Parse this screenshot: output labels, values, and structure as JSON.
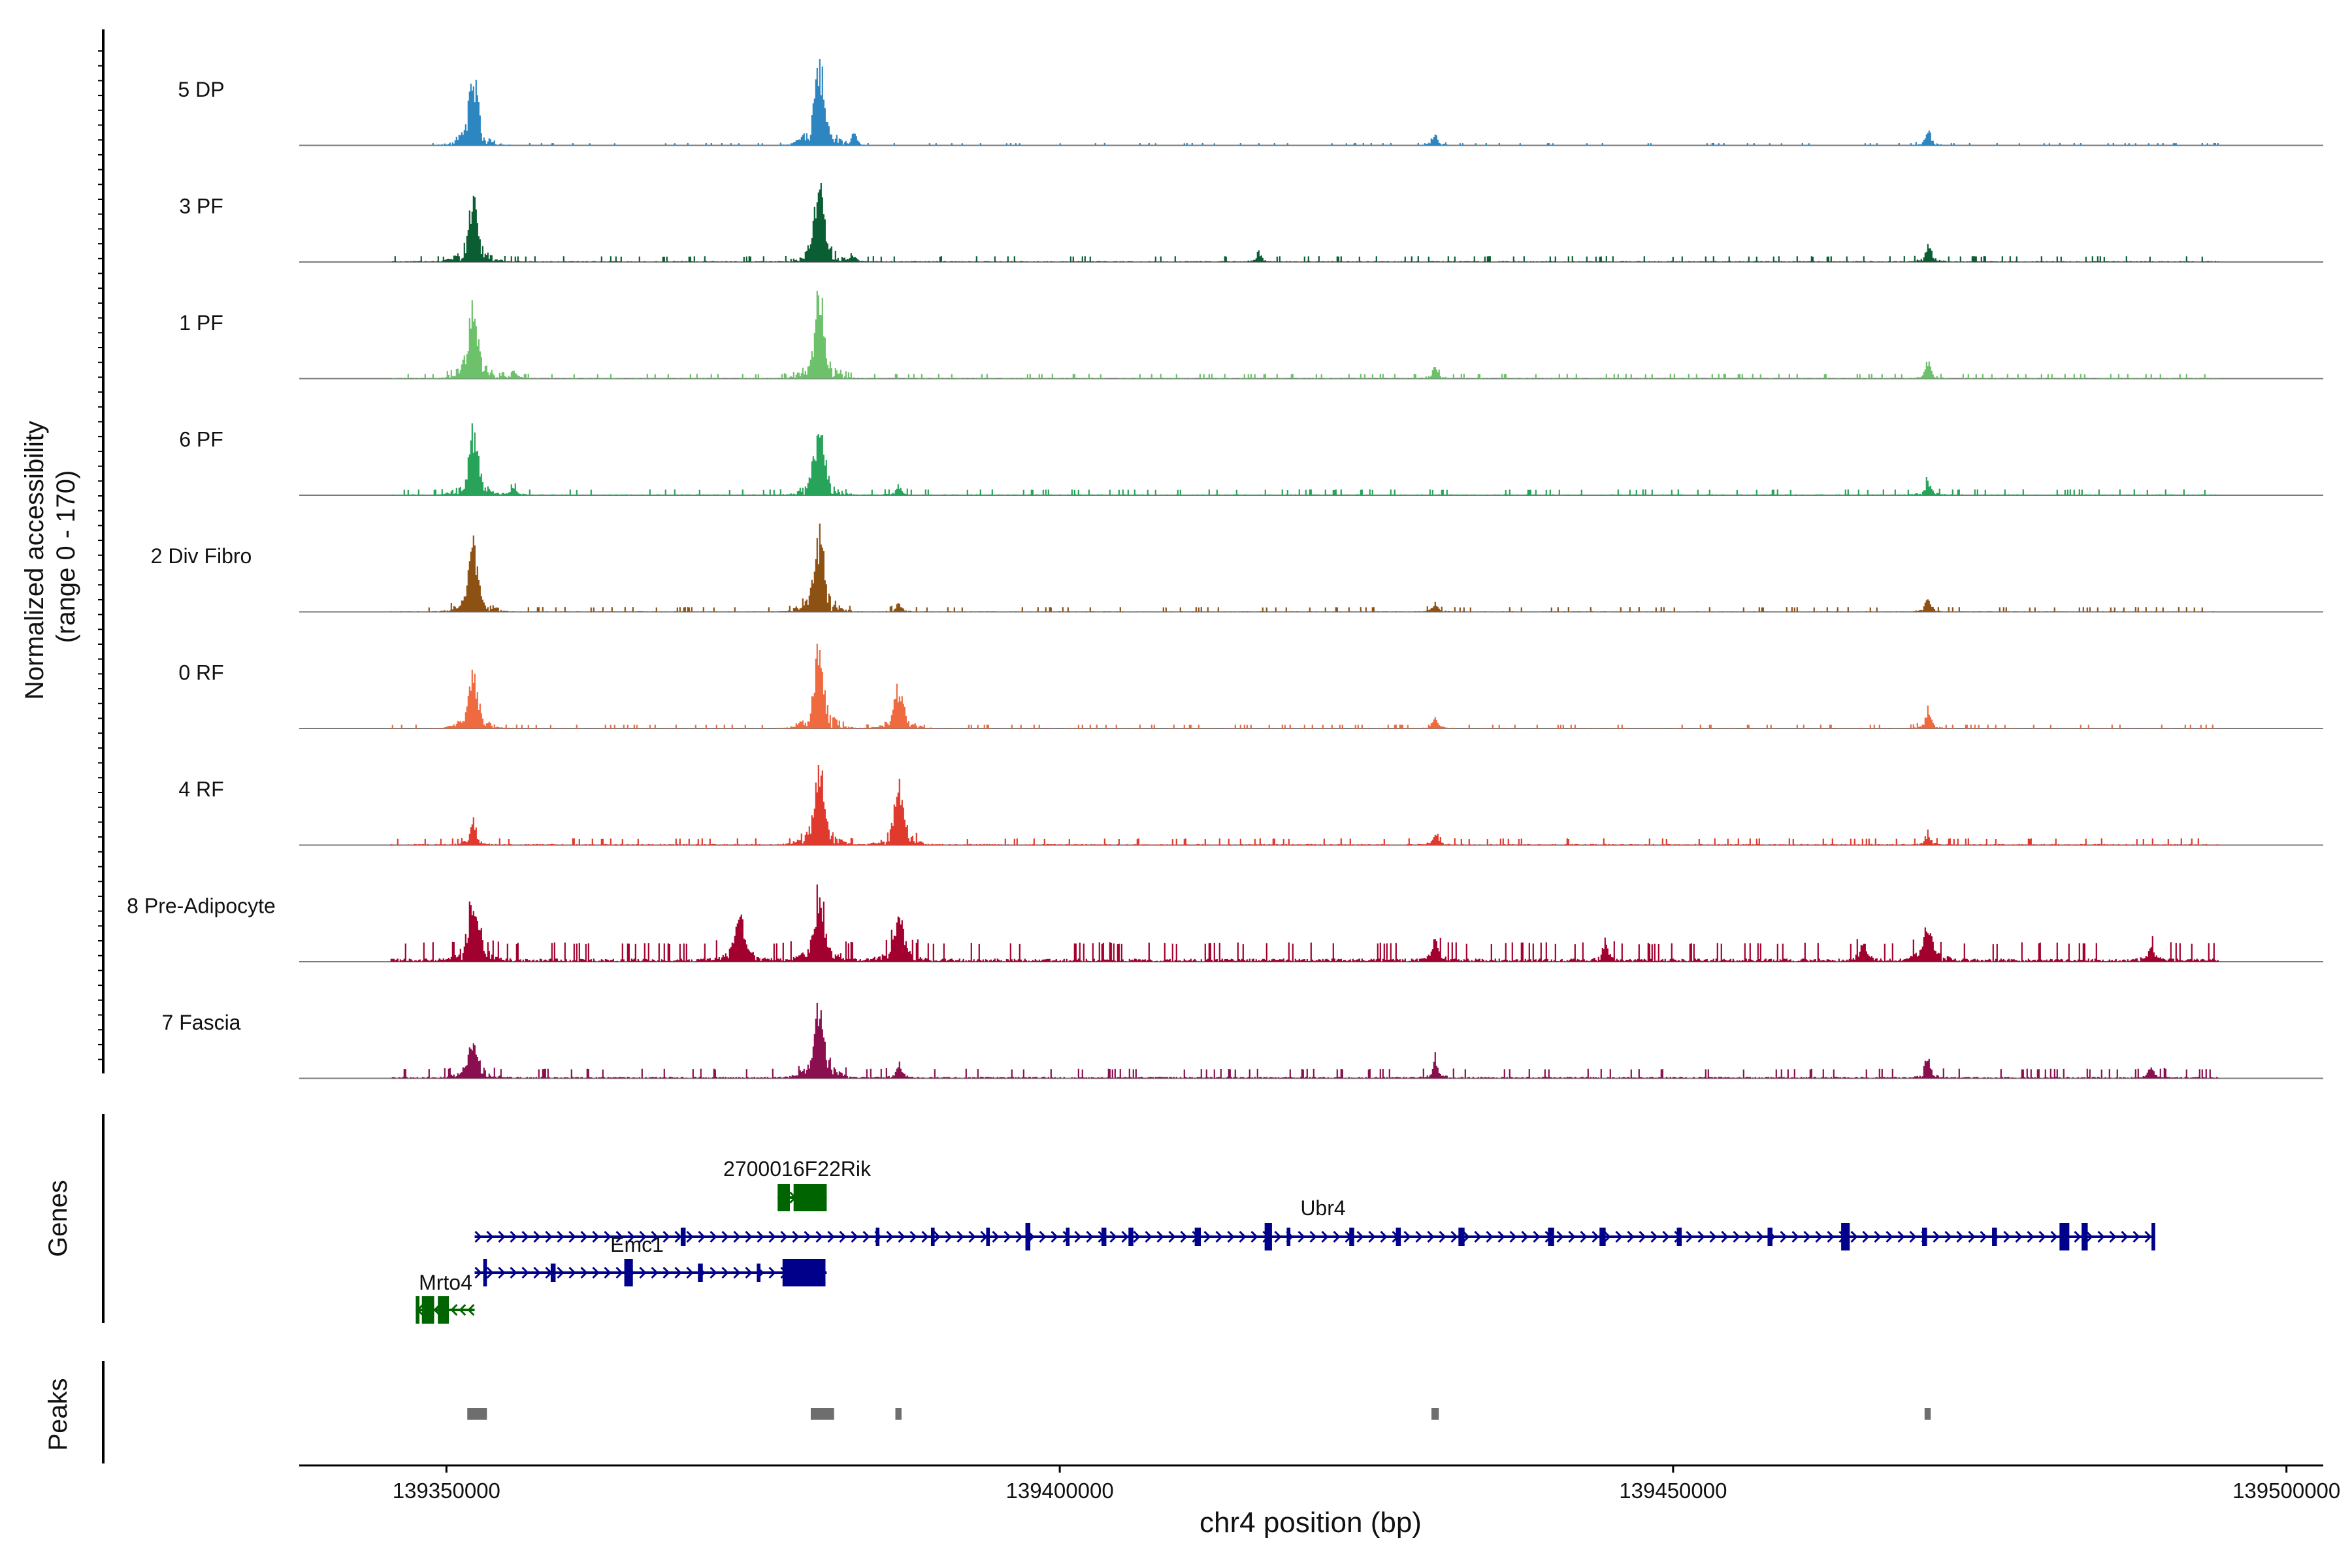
{
  "chart_data": {
    "type": "area",
    "title": "",
    "ylabel_line1": "Normalized accessibility",
    "ylabel_line2": "(range 0 - 170)",
    "y_range": [
      0,
      170
    ],
    "xlabel": "chr4 position (bp)",
    "chrom": "chr4",
    "xlim": [
      139338000,
      139503000
    ],
    "x_ticks": [
      139350000,
      139400000,
      139450000,
      139500000
    ],
    "x_tick_labels": [
      "139350000",
      "139400000",
      "139450000",
      "139500000"
    ],
    "data_extent": [
      139345500,
      139494500
    ],
    "tracks": [
      {
        "name": "5 DP",
        "color": "#2E86C1",
        "noise": 0.012,
        "peaks": [
          [
            139352200,
            0.82
          ],
          [
            139380400,
            0.95
          ],
          [
            139383200,
            0.14
          ],
          [
            139430600,
            0.12
          ],
          [
            139470800,
            0.18
          ]
        ]
      },
      {
        "name": "3 PF",
        "color": "#0B5E34",
        "noise": 0.03,
        "peaks": [
          [
            139352200,
            0.7
          ],
          [
            139380400,
            0.98
          ],
          [
            139383200,
            0.07
          ],
          [
            139416300,
            0.08
          ],
          [
            139470800,
            0.22
          ]
        ]
      },
      {
        "name": "1 PF",
        "color": "#6CC16A",
        "noise": 0.025,
        "peaks": [
          [
            139352200,
            0.88
          ],
          [
            139380400,
            0.93
          ],
          [
            139355500,
            0.1
          ],
          [
            139430600,
            0.14
          ],
          [
            139470800,
            0.2
          ]
        ]
      },
      {
        "name": "6 PF",
        "color": "#27A35A",
        "noise": 0.03,
        "peaks": [
          [
            139352200,
            0.73
          ],
          [
            139380400,
            0.87
          ],
          [
            139386900,
            0.1
          ],
          [
            139355500,
            0.08
          ],
          [
            139470800,
            0.16
          ]
        ]
      },
      {
        "name": "2 Div Fibro",
        "color": "#8E5114",
        "noise": 0.025,
        "peaks": [
          [
            139352200,
            0.76
          ],
          [
            139380400,
            0.92
          ],
          [
            139386900,
            0.1
          ],
          [
            139430600,
            0.1
          ],
          [
            139470800,
            0.16
          ]
        ]
      },
      {
        "name": "0 RF",
        "color": "#F06A40",
        "noise": 0.02,
        "peaks": [
          [
            139352200,
            0.6
          ],
          [
            139380400,
            0.88
          ],
          [
            139386900,
            0.47
          ],
          [
            139430600,
            0.12
          ],
          [
            139470800,
            0.22
          ]
        ]
      },
      {
        "name": "4 RF",
        "color": "#E03A2E",
        "noise": 0.035,
        "peaks": [
          [
            139352200,
            0.3
          ],
          [
            139380400,
            0.85
          ],
          [
            139386900,
            0.7
          ],
          [
            139430600,
            0.12
          ],
          [
            139470800,
            0.1
          ]
        ]
      },
      {
        "name": "8 Pre-Adipocyte",
        "color": "#A2002E",
        "noise": 0.1,
        "peaks": [
          [
            139352200,
            0.73
          ],
          [
            139373900,
            0.52
          ],
          [
            139380400,
            0.82
          ],
          [
            139386900,
            0.52
          ],
          [
            139430600,
            0.3
          ],
          [
            139470800,
            0.4
          ],
          [
            139444500,
            0.25
          ],
          [
            139465500,
            0.25
          ],
          [
            139489000,
            0.22
          ]
        ]
      },
      {
        "name": "7 Fascia",
        "color": "#8A0F4F",
        "noise": 0.05,
        "peaks": [
          [
            139352200,
            0.4
          ],
          [
            139380400,
            0.82
          ],
          [
            139386900,
            0.15
          ],
          [
            139430600,
            0.18
          ],
          [
            139470800,
            0.2
          ],
          [
            139489000,
            0.14
          ]
        ]
      }
    ],
    "genes_label": "Genes",
    "genes": [
      {
        "name": "2700016F22Rik",
        "strand": "+",
        "color": "#006400",
        "start": 139377000,
        "end": 139381000,
        "row": 0,
        "exons": [
          [
            139377000,
            139378000,
            "full"
          ],
          [
            139378300,
            139381000,
            "full"
          ]
        ]
      },
      {
        "name": "Ubr4",
        "strand": "+",
        "color": "#00008B",
        "start": 139352300,
        "end": 139489000,
        "row": 1,
        "exons": [
          [
            139369100,
            139369500,
            "half"
          ],
          [
            139385000,
            139385300,
            "half"
          ],
          [
            139389500,
            139389800,
            "half"
          ],
          [
            139394000,
            139394300,
            "half"
          ],
          [
            139397200,
            139397600,
            "full"
          ],
          [
            139400500,
            139400800,
            "half"
          ],
          [
            139403400,
            139403800,
            "half"
          ],
          [
            139405600,
            139406000,
            "half"
          ],
          [
            139411000,
            139411500,
            "half"
          ],
          [
            139416700,
            139417300,
            "full"
          ],
          [
            139418500,
            139418800,
            "half"
          ],
          [
            139423600,
            139424000,
            "half"
          ],
          [
            139427400,
            139427800,
            "half"
          ],
          [
            139432500,
            139433000,
            "half"
          ],
          [
            139439800,
            139440300,
            "half"
          ],
          [
            139444000,
            139444500,
            "half"
          ],
          [
            139450300,
            139450700,
            "half"
          ],
          [
            139457700,
            139458100,
            "half"
          ],
          [
            139463700,
            139464400,
            "full"
          ],
          [
            139470300,
            139470700,
            "half"
          ],
          [
            139476000,
            139476400,
            "half"
          ],
          [
            139481500,
            139482300,
            "full"
          ],
          [
            139483300,
            139483800,
            "full"
          ],
          [
            139489000,
            139489300,
            "full"
          ]
        ]
      },
      {
        "name": "Emc1",
        "strand": "+",
        "color": "#00008B",
        "start": 139352300,
        "end": 139381000,
        "row": 2,
        "exons": [
          [
            139353000,
            139353300,
            "full"
          ],
          [
            139358500,
            139358900,
            "half"
          ],
          [
            139364500,
            139365200,
            "full"
          ],
          [
            139370500,
            139370900,
            "half"
          ],
          [
            139375300,
            139375600,
            "half"
          ],
          [
            139377400,
            139380900,
            "full"
          ]
        ]
      },
      {
        "name": "Mrto4",
        "strand": "-",
        "color": "#006400",
        "start": 139347500,
        "end": 139352300,
        "row": 3,
        "exons": [
          [
            139347500,
            139347800,
            "full"
          ],
          [
            139348000,
            139349000,
            "full"
          ],
          [
            139349300,
            139350200,
            "full"
          ]
        ]
      }
    ],
    "peaks_label": "Peaks",
    "peak_regions": [
      [
        139351700,
        139353300
      ],
      [
        139379700,
        139381600
      ],
      [
        139386600,
        139387100
      ],
      [
        139430300,
        139430900
      ],
      [
        139470500,
        139471000
      ]
    ]
  }
}
